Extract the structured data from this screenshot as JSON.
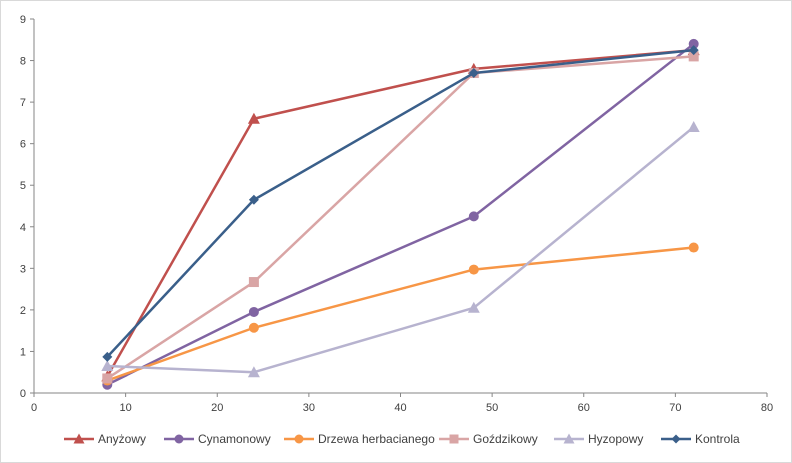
{
  "chart_data": {
    "type": "line",
    "title": "",
    "xlabel": "",
    "ylabel": "",
    "xlim": [
      0,
      80
    ],
    "ylim": [
      0,
      9
    ],
    "xticks": [
      0,
      10,
      20,
      30,
      40,
      50,
      60,
      70,
      80
    ],
    "yticks": [
      0,
      1,
      2,
      3,
      4,
      5,
      6,
      7,
      8,
      9
    ],
    "grid": false,
    "legend_position": "bottom",
    "series": [
      {
        "name": "Anyżowy",
        "color": "#c0504d",
        "marker": "triangle",
        "x": [
          8,
          24,
          48,
          72
        ],
        "y": [
          0.4,
          6.6,
          7.8,
          8.25
        ]
      },
      {
        "name": "Cynamonowy",
        "color": "#8064a2",
        "marker": "circle",
        "x": [
          8,
          24,
          48,
          72
        ],
        "y": [
          0.2,
          1.95,
          4.25,
          8.4
        ]
      },
      {
        "name": "Drzewa herbacianego",
        "color": "#f79646",
        "marker": "circle",
        "x": [
          8,
          24,
          48,
          72
        ],
        "y": [
          0.3,
          1.57,
          2.97,
          3.5
        ]
      },
      {
        "name": "Goździkowy",
        "color": "#d9a5a5",
        "marker": "square",
        "x": [
          8,
          24,
          48,
          72
        ],
        "y": [
          0.35,
          2.67,
          7.7,
          8.1
        ]
      },
      {
        "name": "Hyzopowy",
        "color": "#b7b3cf",
        "marker": "triangle",
        "x": [
          8,
          24,
          48,
          72
        ],
        "y": [
          0.65,
          0.5,
          2.05,
          6.4
        ]
      },
      {
        "name": "Kontrola",
        "color": "#3a5f8a",
        "marker": "diamond",
        "x": [
          8,
          24,
          48,
          72
        ],
        "y": [
          0.87,
          4.65,
          7.7,
          8.25
        ]
      }
    ]
  }
}
